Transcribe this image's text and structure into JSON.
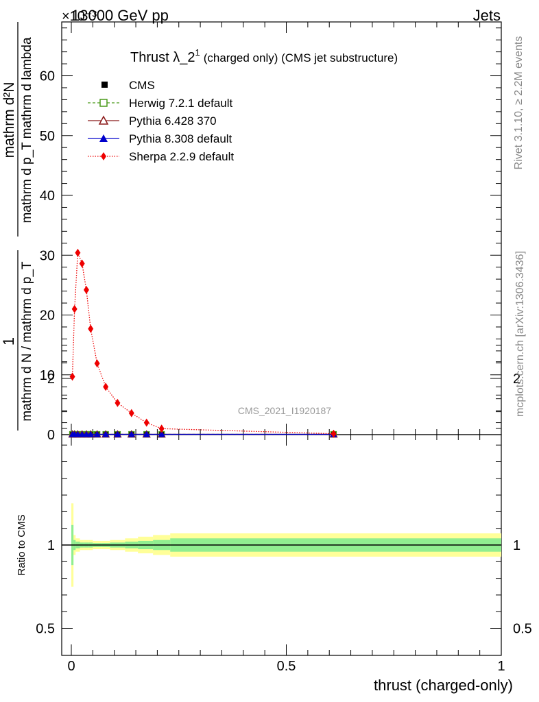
{
  "header": {
    "left": "13000 GeV pp",
    "right": "Jets",
    "exponent": "×10⁻³"
  },
  "chart_data": {
    "type": "line",
    "title_main": "Thrust λ_2",
    "title_sup": "1",
    "title_rest": "(charged only) (CMS jet substructure)",
    "xlabel": "thrust (charged-only)",
    "ylabel_upper_num": "mathrm d²N",
    "ylabel_upper_mid": "mathrm d p_T mathrm d lambda",
    "ylabel_frac_num": "1",
    "ylabel_frac_den": "mathrm d N / mathrm d p_T",
    "ylabel_ratio": "Ratio to CMS",
    "analysis_id": "CMS_2021_I1920187",
    "rivet_label": "Rivet 3.1.10, ≥ 2.2M events",
    "mcplots_label": "mcplots.cern.ch [arXiv:1306.3436]",
    "xlim": [
      0,
      1
    ],
    "ylim": [
      0,
      69
    ],
    "ratio_ylim": [
      0.4,
      2.3
    ],
    "y_ticks": [
      "0",
      "10",
      "20",
      "30",
      "40",
      "50",
      "60"
    ],
    "x_ticks": [
      "0",
      "0.5",
      "1"
    ],
    "ratio_ticks": [
      "0.5",
      "1",
      "2"
    ],
    "y_exponent_note": "values × 10^-3",
    "series": [
      {
        "name": "CMS",
        "color": "#000000",
        "marker": "square-filled",
        "x": [
          0.0025,
          0.0075,
          0.015,
          0.025,
          0.035,
          0.045,
          0.06,
          0.08,
          0.1075,
          0.14,
          0.175,
          0.21,
          0.61
        ],
        "y": [
          0.05,
          0.05,
          0.05,
          0.05,
          0.05,
          0.05,
          0.05,
          0.05,
          0.05,
          0.05,
          0.05,
          0.05,
          0.05
        ]
      },
      {
        "name": "Herwig 7.2.1 default",
        "color": "#4a9a1a",
        "marker": "square-open",
        "line": "dashed",
        "x": [
          0.0025,
          0.0075,
          0.015,
          0.025,
          0.035,
          0.045,
          0.06,
          0.08,
          0.1075,
          0.14,
          0.175,
          0.21,
          0.61
        ],
        "y": [
          0.05,
          0.05,
          0.05,
          0.05,
          0.05,
          0.05,
          0.05,
          0.05,
          0.05,
          0.05,
          0.05,
          0.05,
          0.05
        ]
      },
      {
        "name": "Pythia 6.428 370",
        "color": "#8b1a1a",
        "marker": "triangle-open",
        "line": "solid",
        "x": [
          0.0025,
          0.0075,
          0.015,
          0.025,
          0.035,
          0.045,
          0.06,
          0.08,
          0.1075,
          0.14,
          0.175,
          0.21,
          0.61
        ],
        "y": [
          0.05,
          0.05,
          0.05,
          0.05,
          0.05,
          0.05,
          0.05,
          0.05,
          0.05,
          0.05,
          0.05,
          0.05,
          0.05
        ]
      },
      {
        "name": "Pythia 8.308 default",
        "color": "#0000cc",
        "marker": "triangle-filled",
        "line": "solid",
        "x": [
          0.0025,
          0.0075,
          0.015,
          0.025,
          0.035,
          0.045,
          0.06,
          0.08,
          0.1075,
          0.14,
          0.175,
          0.21,
          0.61
        ],
        "y": [
          0.05,
          0.05,
          0.05,
          0.05,
          0.05,
          0.05,
          0.05,
          0.05,
          0.05,
          0.05,
          0.05,
          0.05,
          0.05
        ]
      },
      {
        "name": "Sherpa 2.2.9 default",
        "color": "#ee0000",
        "marker": "diamond-filled",
        "line": "dotted",
        "x": [
          0.0025,
          0.0075,
          0.015,
          0.025,
          0.035,
          0.045,
          0.06,
          0.08,
          0.1075,
          0.14,
          0.175,
          0.21,
          0.61
        ],
        "y": [
          9.7,
          21.0,
          30.4,
          28.6,
          24.2,
          17.7,
          11.9,
          8.0,
          5.3,
          3.6,
          2.0,
          1.0,
          0.15
        ]
      }
    ],
    "ratio_bands": {
      "x_edges": [
        0,
        0.005,
        0.01,
        0.02,
        0.03,
        0.04,
        0.05,
        0.07,
        0.09,
        0.125,
        0.155,
        0.19,
        0.23,
        1.0
      ],
      "outer": [
        0.25,
        0.06,
        0.04,
        0.03,
        0.03,
        0.03,
        0.025,
        0.025,
        0.03,
        0.04,
        0.05,
        0.06,
        0.07
      ],
      "inner": [
        0.12,
        0.03,
        0.02,
        0.015,
        0.015,
        0.015,
        0.012,
        0.012,
        0.015,
        0.02,
        0.025,
        0.03,
        0.04
      ],
      "outer_color": "#ffff99",
      "inner_color": "#90ee90"
    }
  }
}
